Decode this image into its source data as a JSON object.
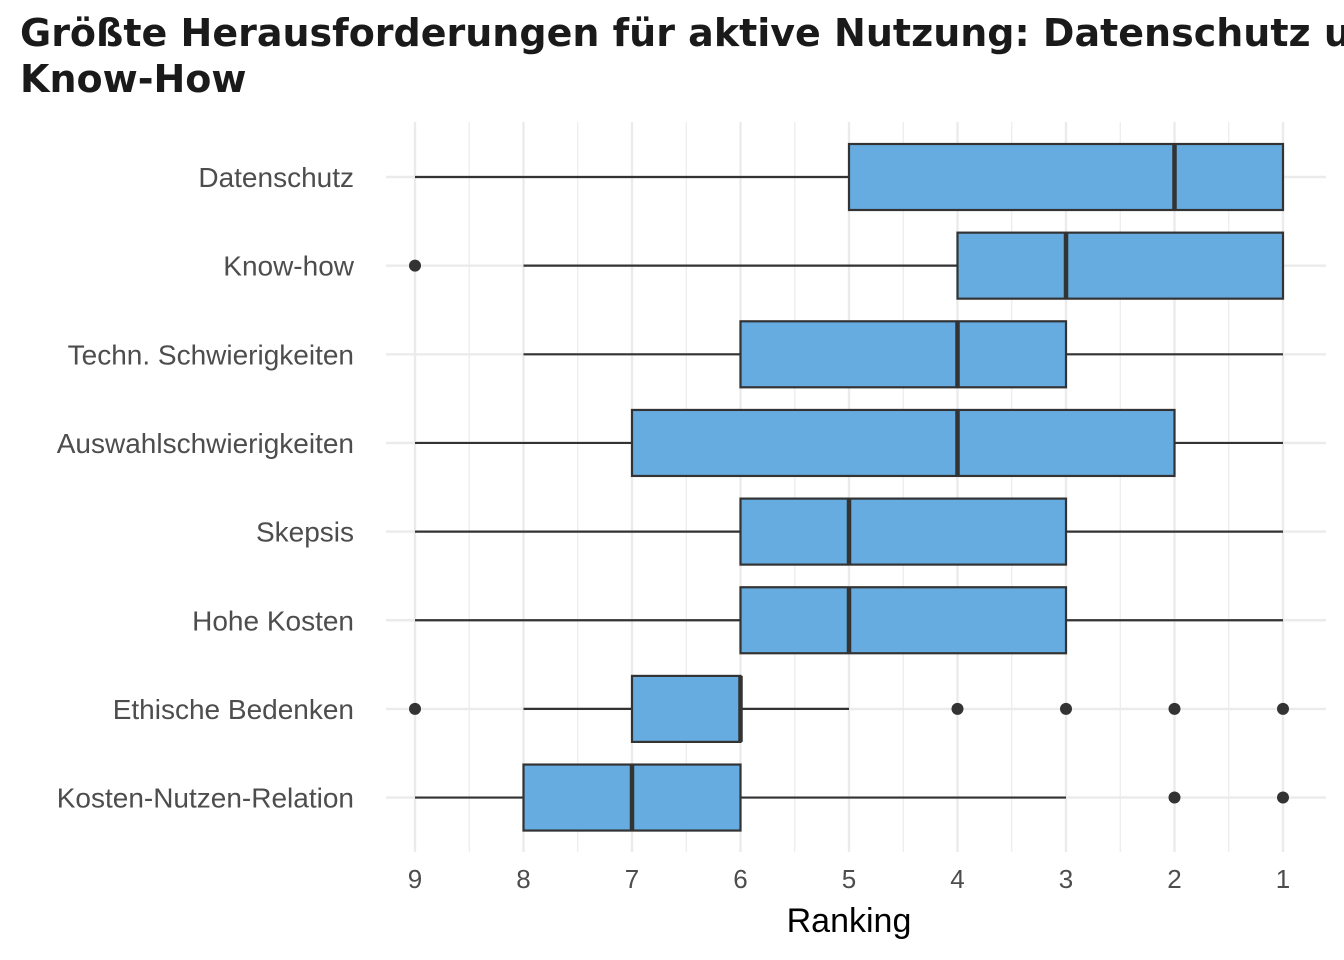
{
  "chart_data": {
    "type": "boxplot",
    "title_lines": [
      "Größte Herausforderungen für aktive Nutzung: Datenschutz und",
      "Know-How"
    ],
    "xlabel": "Ranking",
    "ylabel": "",
    "x_reversed": true,
    "xlim": [
      9,
      1
    ],
    "x_ticks": [
      9,
      8,
      7,
      6,
      5,
      4,
      3,
      2,
      1
    ],
    "grid": true,
    "categories": [
      "Datenschutz",
      "Know-how",
      "Techn. Schwierigkeiten",
      "Auswahlschwierigkeiten",
      "Skepsis",
      "Hohe Kosten",
      "Ethische Bedenken",
      "Kosten-Nutzen-Relation"
    ],
    "boxes": [
      {
        "category": "Datenschutz",
        "whisker_low": 1,
        "q1": 1,
        "median": 2,
        "q3": 5,
        "whisker_high": 9,
        "outliers": []
      },
      {
        "category": "Know-how",
        "whisker_low": 1,
        "q1": 1,
        "median": 3,
        "q3": 4,
        "whisker_high": 8,
        "outliers": [
          9
        ]
      },
      {
        "category": "Techn. Schwierigkeiten",
        "whisker_low": 1,
        "q1": 3,
        "median": 4,
        "q3": 6,
        "whisker_high": 8,
        "outliers": []
      },
      {
        "category": "Auswahlschwierigkeiten",
        "whisker_low": 1,
        "q1": 2,
        "median": 4,
        "q3": 7,
        "whisker_high": 9,
        "outliers": []
      },
      {
        "category": "Skepsis",
        "whisker_low": 1,
        "q1": 3,
        "median": 5,
        "q3": 6,
        "whisker_high": 9,
        "outliers": []
      },
      {
        "category": "Hohe Kosten",
        "whisker_low": 1,
        "q1": 3,
        "median": 5,
        "q3": 6,
        "whisker_high": 9,
        "outliers": []
      },
      {
        "category": "Ethische Bedenken",
        "whisker_low": 5,
        "q1": 6,
        "median": 6,
        "q3": 7,
        "whisker_high": 8,
        "outliers": [
          9,
          4,
          3,
          2,
          1
        ]
      },
      {
        "category": "Kosten-Nutzen-Relation",
        "whisker_low": 3,
        "q1": 6,
        "median": 7,
        "q3": 8,
        "whisker_high": 9,
        "outliers": [
          2,
          1
        ]
      }
    ],
    "colors": {
      "box_fill": "#66ace0",
      "box_stroke": "#333333",
      "grid": "#ebebeb",
      "background": "#ffffff"
    }
  }
}
